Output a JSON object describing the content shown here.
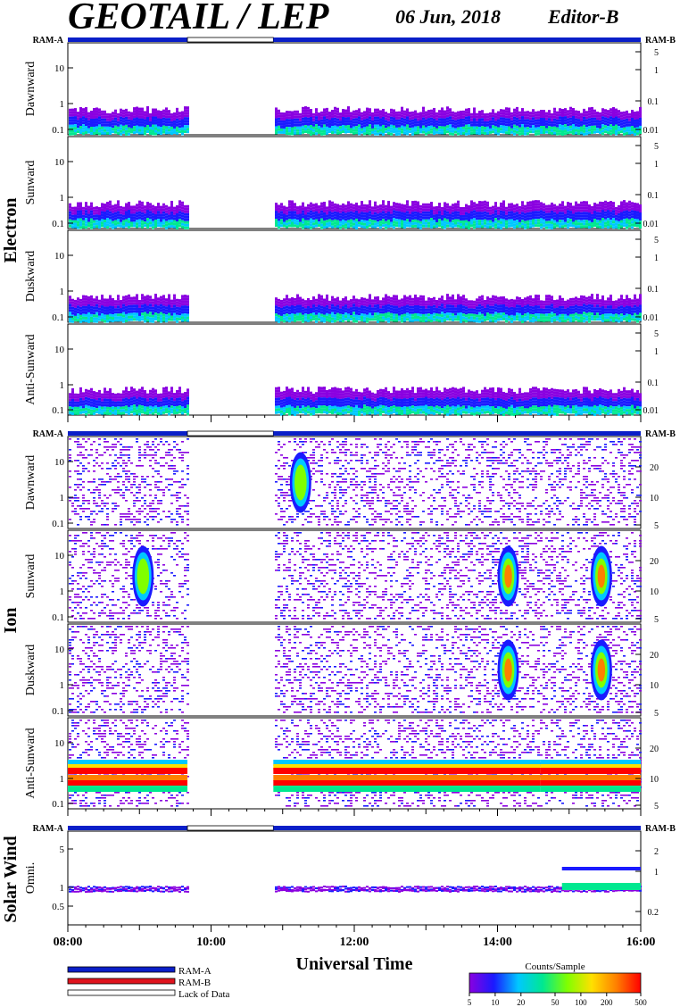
{
  "header": {
    "title": "GEOTAIL / LEP",
    "date": "06 Jun, 2018",
    "editor": "Editor-B"
  },
  "bar_labels": {
    "left": "RAM-A",
    "right": "RAM-B"
  },
  "groups": [
    {
      "name": "Electron",
      "panels": [
        "Dawnward",
        "Sunward",
        "Duskward",
        "Anti-Sunward"
      ]
    },
    {
      "name": "Ion",
      "panels": [
        "Dawnward",
        "Sunward",
        "Duskward",
        "Anti-Sunward"
      ]
    },
    {
      "name": "Solar Wind",
      "panels": [
        "Omni."
      ]
    }
  ],
  "x_axis": {
    "label": "Universal Time",
    "ticks": [
      "08:00",
      "10:00",
      "12:00",
      "14:00",
      "16:00"
    ],
    "range_hours": [
      8,
      16
    ]
  },
  "legend": {
    "items": [
      {
        "label": "RAM-A",
        "color": "#0a1fc8"
      },
      {
        "label": "RAM-B",
        "color": "#e0141e"
      },
      {
        "label": "Lack of Data",
        "color": "#ffffff"
      }
    ]
  },
  "colorbar": {
    "title": "Counts/Sample",
    "ticks": [
      "5",
      "10",
      "20",
      "50",
      "100",
      "200",
      "500"
    ],
    "colors": [
      "#8a00e0",
      "#1a1aff",
      "#00c8ff",
      "#00e890",
      "#80ff00",
      "#ffe000",
      "#ff8000",
      "#ff0000"
    ]
  },
  "chart_data": {
    "type": "heatmap",
    "title": "GEOTAIL / LEP",
    "xlabel": "Universal Time",
    "xlim_hours": [
      8,
      16
    ],
    "data_gap_hours": [
      9.67,
      10.87
    ],
    "electron_panels": {
      "left_ticks": [
        "10",
        "1",
        "0.1"
      ],
      "right_ticks": [
        "5",
        "1",
        "0.1",
        "0.01"
      ]
    },
    "ion_panels": {
      "left_ticks": [
        "10",
        "1",
        "0.1"
      ],
      "right_ticks": [
        "20",
        "10",
        "5"
      ]
    },
    "solar_wind_panel": {
      "left_ticks": [
        "5",
        "1",
        "0.5"
      ],
      "right_ticks": [
        "2",
        "1",
        "0.2"
      ]
    },
    "features": [
      {
        "panel": "ion-anti-sunward",
        "type": "band",
        "t0": 8.0,
        "t1": 9.67,
        "level": "high"
      },
      {
        "panel": "ion-anti-sunward",
        "type": "band",
        "t0": 10.87,
        "t1": 14.6,
        "level": "high"
      },
      {
        "panel": "ion-anti-sunward",
        "type": "band",
        "t0": 14.6,
        "t1": 16.0,
        "level": "high"
      },
      {
        "panel": "ion-sunward",
        "type": "blob",
        "t": 14.15,
        "level": "high"
      },
      {
        "panel": "ion-sunward",
        "type": "blob",
        "t": 15.45,
        "level": "high"
      },
      {
        "panel": "ion-duskward",
        "type": "blob",
        "t": 14.15,
        "level": "high"
      },
      {
        "panel": "ion-duskward",
        "type": "blob",
        "t": 15.45,
        "level": "high"
      },
      {
        "panel": "ion-dawnward",
        "type": "blob",
        "t": 11.25,
        "level": "medium"
      },
      {
        "panel": "ion-sunward",
        "type": "blob",
        "t": 9.05,
        "level": "medium"
      },
      {
        "panel": "solar-wind-omni",
        "type": "band",
        "t0": 14.9,
        "t1": 16.0,
        "level": "medium"
      }
    ]
  }
}
